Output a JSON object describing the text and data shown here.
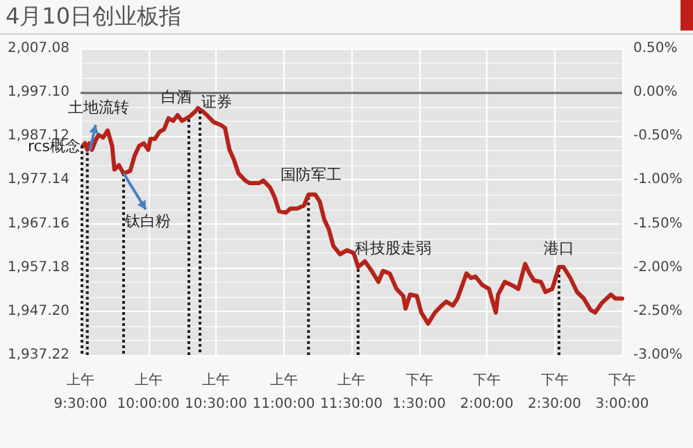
{
  "chart_data": {
    "type": "line",
    "title": "4月10日创业板指",
    "categories": [
      "上午\n9:30:00",
      null,
      null,
      null,
      null,
      null,
      null,
      null,
      null,
      null,
      null,
      null,
      null,
      null,
      null,
      null,
      null,
      null,
      null,
      null,
      null,
      null,
      null,
      null,
      null,
      null,
      null,
      null,
      null,
      null,
      "上午\n10:00:00",
      null,
      null,
      null,
      null,
      null,
      null,
      null,
      null,
      null,
      null,
      null,
      null,
      null,
      null,
      null,
      null,
      null,
      null,
      null,
      null,
      null,
      null,
      null,
      null,
      null,
      null,
      null,
      null,
      null,
      "上午\n10:30:00",
      null,
      null,
      null,
      null,
      null,
      null,
      null,
      null,
      null,
      null,
      null,
      null,
      null,
      null,
      null,
      null,
      null,
      null,
      null,
      null,
      null,
      null,
      null,
      null,
      null,
      null,
      null,
      null,
      null,
      "上午\n11:00:00",
      null,
      null,
      null,
      null,
      null,
      null,
      null,
      null,
      null,
      null,
      null,
      null,
      null,
      null,
      null,
      null,
      null,
      null,
      null,
      null,
      null,
      null,
      null,
      null,
      null,
      null,
      null,
      null,
      null,
      "上午\n11:30:00",
      null,
      null,
      null,
      null,
      null,
      null,
      null,
      null,
      null,
      null,
      null,
      null,
      null,
      null,
      null,
      null,
      null,
      null,
      null,
      null,
      null,
      null,
      null,
      null,
      null,
      null,
      null,
      null,
      null,
      "下午\n1:30:00",
      null,
      null,
      null,
      null,
      null,
      null,
      null,
      null,
      null,
      null,
      null,
      null,
      null,
      null,
      null,
      null,
      null,
      null,
      null,
      null,
      null,
      null,
      null,
      null,
      null,
      null,
      null,
      null,
      null,
      "下午\n2:00:00",
      null,
      null,
      null,
      null,
      null,
      null,
      null,
      null,
      null,
      null,
      null,
      null,
      null,
      null,
      null,
      null,
      null,
      null,
      null,
      null,
      null,
      null,
      null,
      null,
      null,
      null,
      null,
      null,
      null,
      "下午\n2:30:00",
      null,
      null,
      null,
      null,
      null,
      null,
      null,
      null,
      null,
      null,
      null,
      null,
      null,
      null,
      null,
      null,
      null,
      null,
      null,
      null,
      null,
      null,
      null,
      null,
      null,
      null,
      null,
      null,
      null,
      "下午\n3:00:00"
    ],
    "series": [
      {
        "color": "#b5231a",
        "values": [
          null,
          1984.9,
          1985.5,
          1984.0,
          1985.5,
          1984.0,
          null,
          1986.5,
          1987.4,
          null,
          1986.8,
          null,
          1988.4,
          null,
          1984.9,
          1979.5,
          null,
          1980.5,
          null,
          1978.6,
          null,
          null,
          1979.2,
          null,
          1982.7,
          null,
          1984.9,
          null,
          1985.5,
          null,
          1984.0,
          1986.5,
          null,
          1986.5,
          null,
          1988.1,
          null,
          1988.7,
          null,
          1991.2,
          null,
          1990.6,
          null,
          1991.9,
          null,
          1990.6,
          null,
          1991.2,
          1991.5,
          1991.9,
          null,
          1992.8,
          1993.5,
          1993.1,
          1992.8,
          null,
          1991.9,
          null,
          null,
          1990.3,
          null,
          null,
          1989.7,
          null,
          1989.0,
          null,
          1984.0,
          null,
          1981.7,
          null,
          1978.6,
          null,
          null,
          1977.0,
          null,
          1976.4,
          null,
          null,
          null,
          1976.4,
          null,
          1977.0,
          null,
          null,
          1975.4,
          null,
          1973.2,
          null,
          1970.0,
          null,
          null,
          1969.7,
          null,
          1970.6,
          null,
          null,
          1970.6,
          null,
          null,
          1971.3,
          null,
          1973.8,
          null,
          null,
          1973.8,
          null,
          1972.2,
          null,
          1968.1,
          null,
          1965.9,
          null,
          1962.1,
          null,
          null,
          1960.2,
          null,
          null,
          1961.1,
          null,
          null,
          1960.5,
          null,
          1957.3,
          null,
          null,
          1958.6,
          null,
          null,
          1956.4,
          null,
          null,
          1953.9,
          null,
          1956.4,
          null,
          null,
          1955.8,
          null,
          null,
          1952.3,
          null,
          null,
          1950.7,
          1947.8,
          null,
          1951.0,
          null,
          null,
          1950.7,
          null,
          1946.9,
          null,
          null,
          1944.4,
          null,
          null,
          1946.9,
          null,
          null,
          1948.5,
          null,
          1949.4,
          null,
          null,
          1948.5,
          null,
          1950.1,
          null,
          null,
          null,
          1955.8,
          null,
          1954.8,
          null,
          1955.1,
          null,
          null,
          1953.2,
          null,
          null,
          1952.3,
          null,
          null,
          1946.9,
          1951.0,
          null,
          null,
          1953.9,
          null,
          null,
          1953.2,
          null,
          null,
          1952.3,
          null,
          null,
          1958.0,
          null,
          1955.8,
          null,
          1954.2,
          null,
          null,
          1953.9,
          null,
          1951.6,
          null,
          null,
          1952.3,
          null,
          null,
          1957.3,
          null,
          1957.3,
          null,
          null,
          1954.8,
          null,
          null,
          1951.6,
          null,
          null,
          1950.1,
          null,
          null,
          1947.5,
          null,
          1946.9,
          null,
          null,
          1949.1,
          null,
          null,
          null,
          1951.0,
          null,
          1950.1,
          null,
          null,
          1950.1
        ]
      }
    ],
    "ylim": [
      1937.22,
      2007.08
    ],
    "yticks": [
      {
        "value": 1937.22,
        "label": "1,937.22"
      },
      {
        "value": 1947.2,
        "label": "1,947.20"
      },
      {
        "value": 1957.18,
        "label": "1,957.18"
      },
      {
        "value": 1967.16,
        "label": "1,967.16"
      },
      {
        "value": 1977.14,
        "label": "1,977.14"
      },
      {
        "value": 1987.12,
        "label": "1,987.12"
      },
      {
        "value": 1997.1,
        "label": "1,997.10"
      },
      {
        "value": 2007.08,
        "label": "2,007.08"
      }
    ],
    "y2lim": [
      -3,
      0.5
    ],
    "y2ticks": [
      {
        "value": -3,
        "label": "-3.00%"
      },
      {
        "value": -2.5,
        "label": "-2.50%"
      },
      {
        "value": -2,
        "label": "-2.00%"
      },
      {
        "value": -1.5,
        "label": "-1.50%"
      },
      {
        "value": -1,
        "label": "-1.00%"
      },
      {
        "value": -0.5,
        "label": "-0.50%"
      },
      {
        "value": 0,
        "label": "0.00%"
      },
      {
        "value": 0.5,
        "label": "0.50%"
      }
    ],
    "ref_lines": [
      {
        "axis": "y2",
        "value": 0,
        "color": "#666666",
        "line_style": "solid"
      }
    ],
    "annotations": [
      "rcs概念",
      {
        "text": "土地流转",
        "y": 1984.0
      },
      "钛白粉",
      {
        "text": "白酒",
        "y": 1991.5
      },
      "证券",
      {
        "text": "国防军工",
        "y": 1973.8
      },
      {
        "text": "科技股走弱",
        "y": 1957.3
      },
      {
        "text": "港口",
        "y": 1957.3
      }
    ],
    "grid": true,
    "marker": "none",
    "line_style": "solid"
  }
}
